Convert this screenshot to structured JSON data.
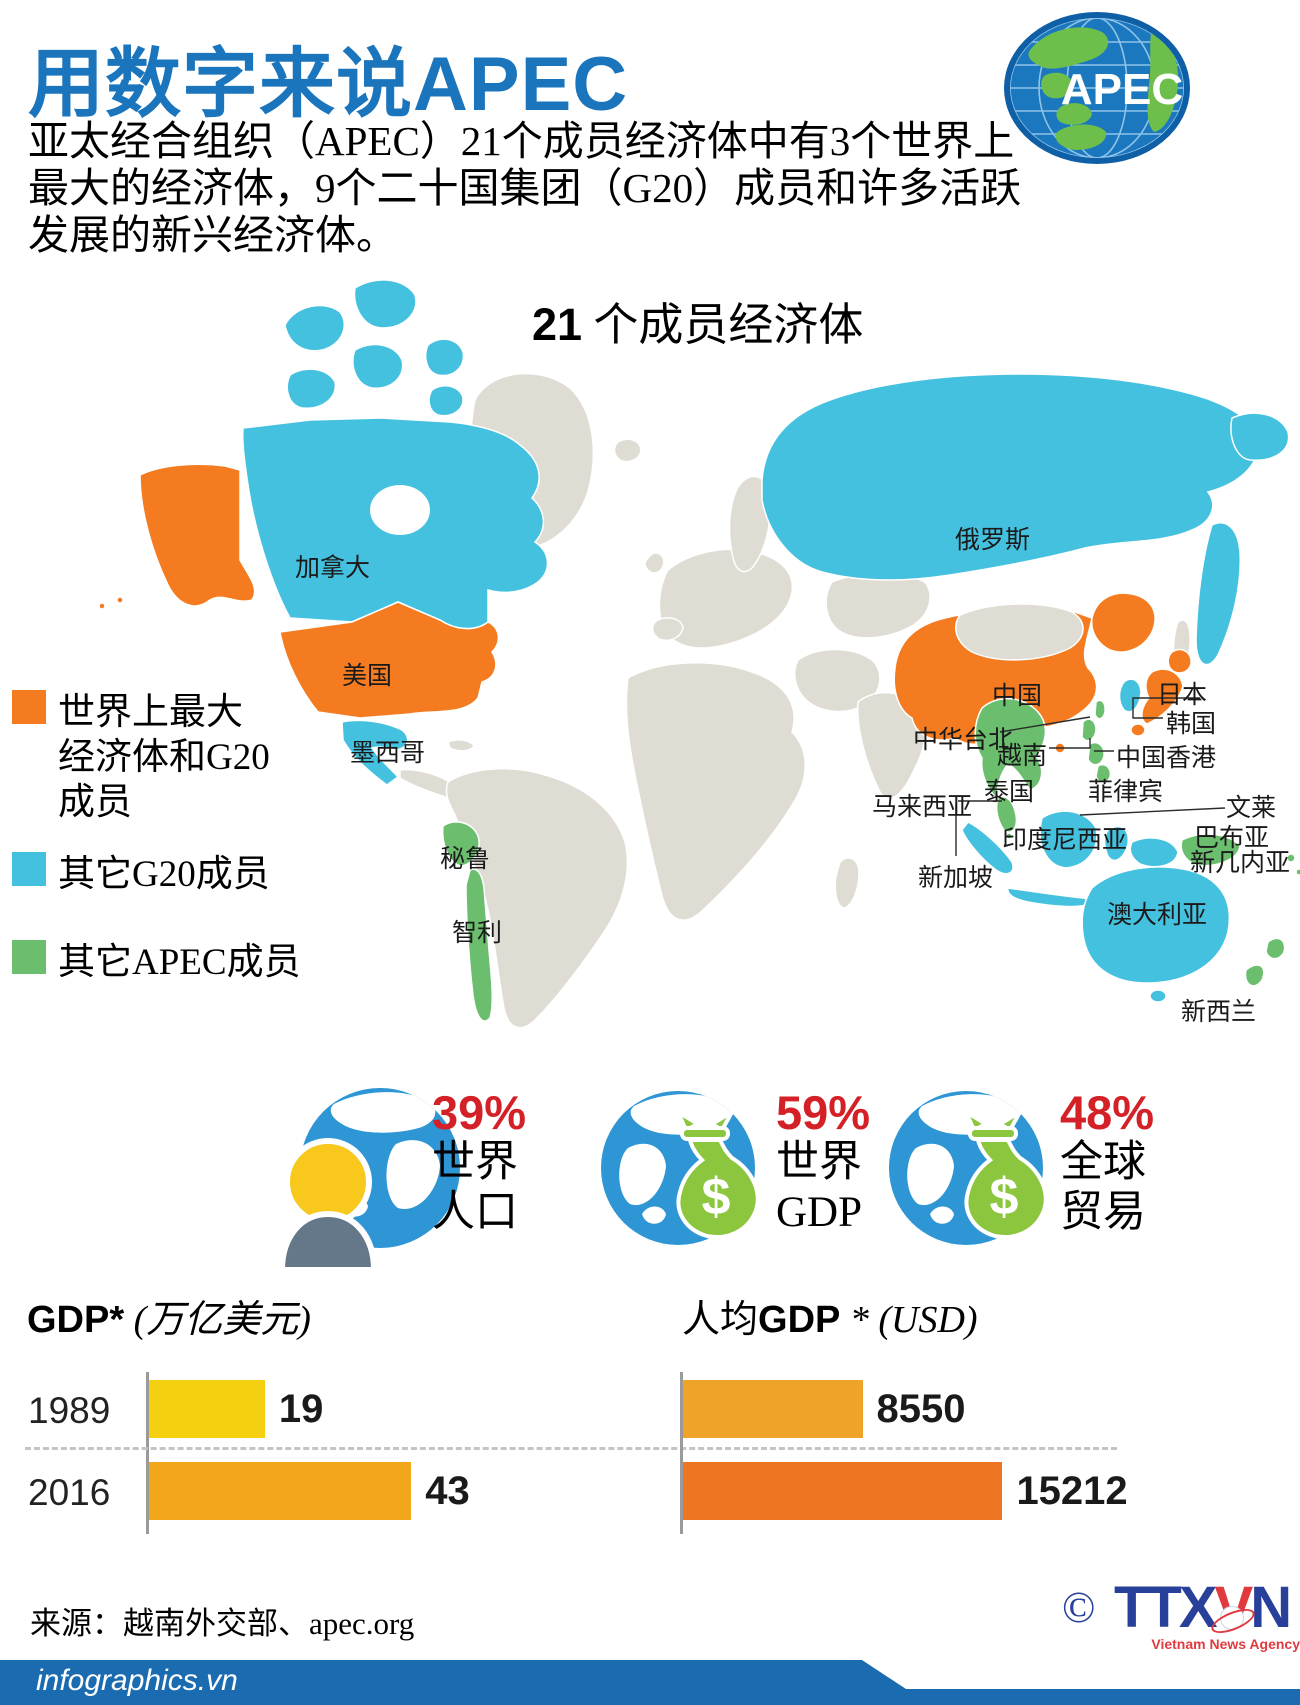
{
  "palette": {
    "title_blue": "#1B75BC",
    "map_blue": "#45C1E0",
    "map_orange": "#F47B20",
    "map_green": "#6CBE6F",
    "map_gray": "#DFDCD3",
    "stat_red": "#D42127",
    "bar_yellow": "#F5D011",
    "bar_amber": "#F2A71B",
    "bar_orange_light": "#F0A329",
    "bar_orange_dark": "#EE7623",
    "footer_blue": "#1B6BB0"
  },
  "header": {
    "title": "用数字来说APEC",
    "intro_lines": [
      "亚太经合组织（APEC）21个成员经济体中有3个世界上",
      "最大的经济体，9个二十国集团（G20）成员和许多活跃",
      "发展的新兴经济体。"
    ],
    "logo_text": "APEC"
  },
  "map": {
    "title_number": "21",
    "title_text": " 个成员经济体",
    "legend": [
      {
        "color": "#F47B20",
        "lines": [
          "世界上最大",
          "经济体和G20",
          "成员"
        ]
      },
      {
        "color": "#45C1E0",
        "lines": [
          "其它G20成员"
        ]
      },
      {
        "color": "#6CBE6F",
        "lines": [
          "其它APEC成员"
        ]
      }
    ],
    "labels": {
      "canada": "加拿大",
      "usa": "美国",
      "mexico": "墨西哥",
      "russia": "俄罗斯",
      "china": "中国",
      "japan": "日本",
      "korea": "韩国",
      "taipei": "中华台北",
      "vietnam": "越南",
      "hongkong": "中国香港",
      "thailand": "泰国",
      "philippines": "菲律宾",
      "malaysia": "马来西亚",
      "brunei": "文莱",
      "indonesia": "印度尼西亚",
      "singapore": "新加坡",
      "png_line1": "巴布亚",
      "png_line2": "新几内亚",
      "australia": "澳大利亚",
      "newzealand": "新西兰",
      "peru": "秘鲁",
      "chile": "智利"
    }
  },
  "stats": [
    {
      "percent": "39%",
      "line1": "世界",
      "line2": "人口"
    },
    {
      "percent": "59%",
      "line1": "世界",
      "line2": "GDP"
    },
    {
      "percent": "48%",
      "line1": "全球",
      "line2": "贸易"
    }
  ],
  "gdp_chart": {
    "title_bold": "GDP*",
    "title_unit": " (万亿美元)",
    "rows": [
      {
        "year": "1989",
        "value": 19
      },
      {
        "year": "2016",
        "value": 43
      }
    ]
  },
  "percap_chart": {
    "title_prefix": "人均",
    "title_bold": "GDP",
    "title_unit": " * (USD)",
    "rows": [
      {
        "value": 8550
      },
      {
        "value": 15212
      }
    ]
  },
  "chart_data": [
    {
      "type": "bar",
      "title": "GDP* (万亿美元)",
      "orientation": "horizontal",
      "categories": [
        "1989",
        "2016"
      ],
      "values": [
        19,
        43
      ],
      "xlabel": "",
      "ylabel": "",
      "grid": false
    },
    {
      "type": "bar",
      "title": "人均GDP * (USD)",
      "orientation": "horizontal",
      "categories": [
        "1989",
        "2016"
      ],
      "values": [
        8550,
        15212
      ],
      "xlabel": "",
      "ylabel": "",
      "grid": false
    }
  ],
  "footer": {
    "source": "来源：越南外交部、apec.org",
    "copyright_symbol": "©",
    "agency_tt": "TTX",
    "agency_v": "V",
    "agency_n": "N",
    "agency_sub": "Vietnam News Agency",
    "site": "infographics.vn"
  }
}
